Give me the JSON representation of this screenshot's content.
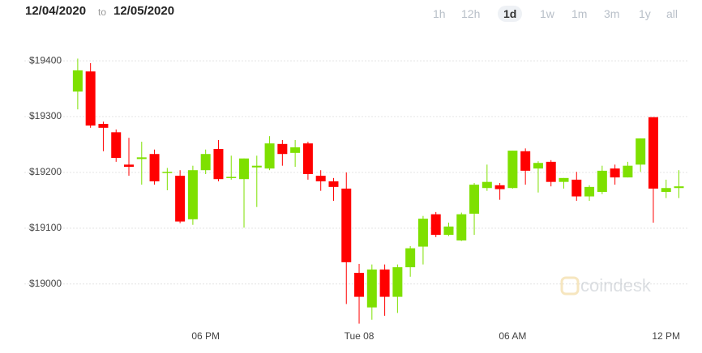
{
  "header": {
    "from": "12/04/2020",
    "separator": "to",
    "to": "12/05/2020",
    "range_buttons": [
      "1h",
      "12h",
      "1d",
      "1w",
      "1m",
      "3m",
      "1y",
      "all"
    ],
    "active_button": 2
  },
  "watermark": "coindesk",
  "chart_data": {
    "type": "candlestick",
    "categories": [
      null,
      null,
      null,
      null,
      null,
      null,
      null,
      null,
      null,
      null,
      "06 PM",
      null,
      null,
      null,
      null,
      null,
      null,
      null,
      null,
      null,
      null,
      null,
      "Tue 08",
      null,
      null,
      null,
      null,
      null,
      null,
      null,
      null,
      null,
      null,
      null,
      "06 AM",
      null,
      null,
      null,
      null,
      null,
      null,
      null,
      null,
      null,
      null,
      null,
      "12 PM",
      null
    ],
    "open": [
      19345,
      19381,
      19287,
      19272,
      19214,
      19224,
      19233,
      19200,
      19194,
      19116,
      19204,
      19242,
      19190,
      19188,
      19209,
      19207,
      19251,
      19235,
      19252,
      19194,
      19184,
      19171,
      19020,
      18958,
      19026,
      18977,
      19030,
      19067,
      19125,
      19088,
      19078,
      19126,
      19172,
      19177,
      19172,
      19238,
      19207,
      19219,
      19183,
      19187,
      19157,
      19165,
      19207,
      19191,
      19214,
      19299,
      19165,
      19172
    ],
    "high": [
      19404,
      19396,
      19291,
      19277,
      19262,
      19255,
      19241,
      19208,
      19204,
      19212,
      19241,
      19258,
      19230,
      19225,
      19230,
      19265,
      19258,
      19258,
      19255,
      19204,
      19190,
      19200,
      19036,
      19035,
      19035,
      19035,
      19068,
      19122,
      19129,
      19110,
      19128,
      19181,
      19214,
      19181,
      19239,
      19243,
      19220,
      19222,
      19190,
      19201,
      19177,
      19212,
      19214,
      19219,
      19261,
      19299,
      19187,
      19204
    ],
    "low": [
      19313,
      19280,
      19238,
      19219,
      19194,
      19178,
      19178,
      19168,
      19109,
      19106,
      19197,
      19184,
      19187,
      19101,
      19138,
      19204,
      19212,
      19210,
      19187,
      19167,
      19149,
      18964,
      18929,
      18936,
      18943,
      18948,
      19013,
      19035,
      19084,
      19086,
      19077,
      19088,
      19167,
      19151,
      19171,
      19178,
      19164,
      19175,
      19171,
      19149,
      19149,
      19161,
      19178,
      19191,
      19201,
      19110,
      19154,
      19154
    ],
    "close": [
      19383,
      19284,
      19280,
      19226,
      19210,
      19227,
      19184,
      19201,
      19112,
      19204,
      19233,
      19188,
      19192,
      19225,
      19212,
      19252,
      19233,
      19245,
      19197,
      19184,
      19174,
      19039,
      18977,
      19026,
      18977,
      19030,
      19064,
      19117,
      19088,
      19103,
      19125,
      19178,
      19183,
      19170,
      19239,
      19203,
      19217,
      19183,
      19190,
      19157,
      19174,
      19203,
      19191,
      19212,
      19261,
      19171,
      19172,
      19175
    ],
    "up_color": "#7ee000",
    "down_color": "#ff0000",
    "ylim": [
      18914,
      19422
    ],
    "yticks": [
      {
        "value": 19000,
        "label": "$19000"
      },
      {
        "value": 19100,
        "label": "$19100"
      },
      {
        "value": 19200,
        "label": "$19200"
      },
      {
        "value": 19300,
        "label": "$19300"
      },
      {
        "value": 19400,
        "label": "$19400"
      }
    ],
    "grid": true
  }
}
